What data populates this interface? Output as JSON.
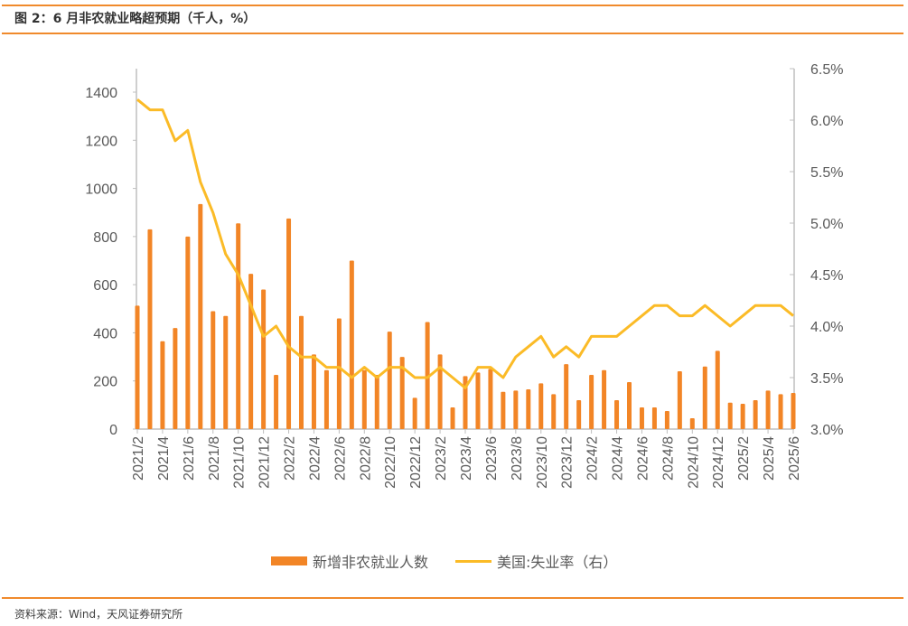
{
  "header": {
    "title": "图 2：6 月非农就业略超预期（千人，%）"
  },
  "footer": {
    "source": "资料来源：Wind，天风证券研究所"
  },
  "colors": {
    "bar": "#f28526",
    "line": "#fbbb27",
    "rule": "#f08a2c",
    "axis": "#bfbfbf",
    "text": "#595959"
  },
  "chart_data": {
    "type": "bar+line",
    "title": "6 月非农就业略超预期（千人，%）",
    "x": [
      "2021/2",
      "2021/3",
      "2021/4",
      "2021/5",
      "2021/6",
      "2021/7",
      "2021/8",
      "2021/9",
      "2021/10",
      "2021/11",
      "2021/12",
      "2022/1",
      "2022/2",
      "2022/3",
      "2022/4",
      "2022/5",
      "2022/6",
      "2022/7",
      "2022/8",
      "2022/9",
      "2022/10",
      "2022/11",
      "2022/12",
      "2023/1",
      "2023/2",
      "2023/3",
      "2023/4",
      "2023/5",
      "2023/6",
      "2023/7",
      "2023/8",
      "2023/9",
      "2023/10",
      "2023/11",
      "2023/12",
      "2024/1",
      "2024/2",
      "2024/3",
      "2024/4",
      "2024/5",
      "2024/6",
      "2024/7",
      "2024/8",
      "2024/9",
      "2024/10",
      "2024/11",
      "2024/12",
      "2025/1",
      "2025/2",
      "2025/3",
      "2025/4",
      "2025/5",
      "2025/6"
    ],
    "x_tick_labels": [
      "2021/2",
      "2021/4",
      "2021/6",
      "2021/8",
      "2021/10",
      "2021/12",
      "2022/2",
      "2022/4",
      "2022/6",
      "2022/8",
      "2022/10",
      "2022/12",
      "2023/2",
      "2023/4",
      "2023/6",
      "2023/8",
      "2023/10",
      "2023/12",
      "2024/2",
      "2024/4",
      "2024/6",
      "2024/8",
      "2024/10",
      "2024/12",
      "2025/2",
      "2025/4",
      "2025/6"
    ],
    "series": [
      {
        "name": "新增非农就业人数",
        "type": "bar",
        "axis": "left",
        "values": [
          513,
          830,
          365,
          420,
          800,
          935,
          490,
          470,
          855,
          645,
          580,
          225,
          875,
          470,
          310,
          245,
          460,
          700,
          245,
          225,
          405,
          300,
          130,
          445,
          310,
          90,
          220,
          235,
          250,
          155,
          160,
          165,
          190,
          145,
          270,
          120,
          225,
          245,
          120,
          195,
          90,
          90,
          75,
          240,
          45,
          260,
          325,
          110,
          105,
          120,
          160,
          145,
          150
        ]
      },
      {
        "name": "美国:失业率（右）",
        "type": "line",
        "axis": "right",
        "values": [
          6.2,
          6.1,
          6.1,
          5.8,
          5.9,
          5.4,
          5.1,
          4.7,
          4.5,
          4.2,
          3.9,
          4.0,
          3.8,
          3.7,
          3.7,
          3.6,
          3.6,
          3.5,
          3.6,
          3.5,
          3.6,
          3.6,
          3.5,
          3.5,
          3.6,
          3.5,
          3.4,
          3.6,
          3.6,
          3.5,
          3.7,
          3.8,
          3.9,
          3.7,
          3.8,
          3.7,
          3.9,
          3.9,
          3.9,
          4.0,
          4.1,
          4.2,
          4.2,
          4.1,
          4.1,
          4.2,
          4.1,
          4.0,
          4.1,
          4.2,
          4.2,
          4.2,
          4.1
        ]
      }
    ],
    "y_left": {
      "ylim": [
        0,
        1500
      ],
      "ticks": [
        0,
        200,
        400,
        600,
        800,
        1000,
        1200,
        1400
      ],
      "tick_labels": [
        "0",
        "200",
        "400",
        "600",
        "800",
        "1000",
        "1200",
        "1400"
      ]
    },
    "y_right": {
      "ylim": [
        3.0,
        6.5
      ],
      "ticks": [
        3.0,
        3.5,
        4.0,
        4.5,
        5.0,
        5.5,
        6.0,
        6.5
      ],
      "tick_labels": [
        "3.0%",
        "3.5%",
        "4.0%",
        "4.5%",
        "5.0%",
        "5.5%",
        "6.0%",
        "6.5%"
      ]
    },
    "legend": {
      "position": "bottom",
      "entries": [
        "新增非农就业人数",
        "美国:失业率（右）"
      ]
    },
    "grid": false
  }
}
